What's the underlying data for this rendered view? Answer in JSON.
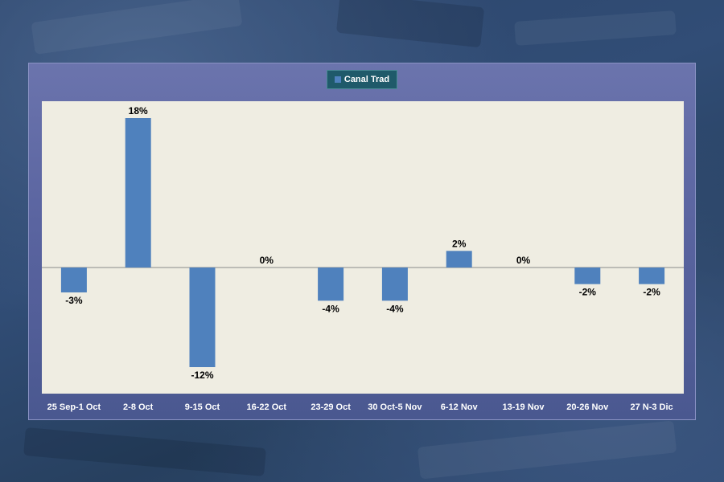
{
  "chart_data": {
    "type": "bar",
    "title": "",
    "xlabel": "",
    "ylabel": "",
    "legend": [
      "Canal Trad"
    ],
    "legend_position": "top-center",
    "categories": [
      "25 Sep-1 Oct",
      "2-8 Oct",
      "9-15 Oct",
      "16-22 Oct",
      "23-29 Oct",
      "30 Oct-5 Nov",
      "6-12 Nov",
      "13-19 Nov",
      "20-26 Nov",
      "27 N-3 Dic"
    ],
    "values": [
      -3,
      18,
      -12,
      0,
      -4,
      -4,
      2,
      0,
      -2,
      -2
    ],
    "value_labels": [
      "-3%",
      "18%",
      "-12%",
      "0%",
      "-4%",
      "-4%",
      "2%",
      "0%",
      "-2%",
      "-2%"
    ],
    "ylim": [
      -15,
      20
    ],
    "grid": false,
    "colors": {
      "bar": "#4f81bd",
      "plot_bg": "#efede2",
      "axis": "#8a8a8a"
    }
  }
}
